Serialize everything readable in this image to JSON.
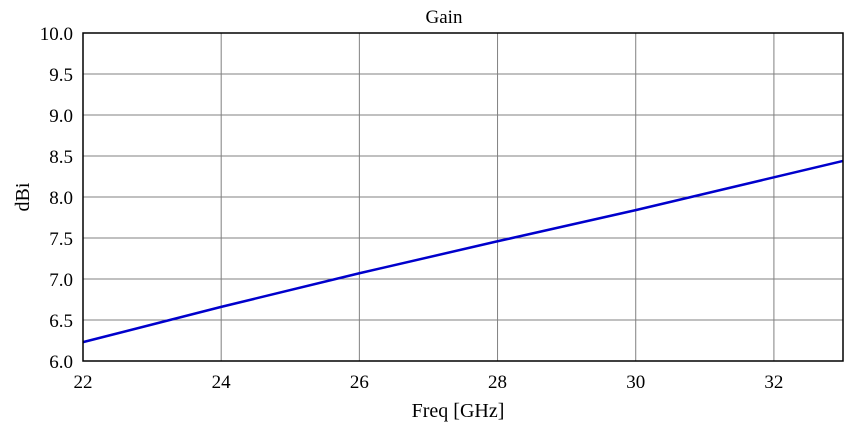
{
  "chart_data": {
    "type": "line",
    "title": "Gain",
    "xlabel": "Freq [GHz]",
    "ylabel": "dBi",
    "xlim": [
      22,
      33
    ],
    "ylim": [
      6.0,
      10.0
    ],
    "x_ticks": [
      "22",
      "24",
      "26",
      "28",
      "30",
      "32"
    ],
    "y_ticks": [
      "6.0",
      "6.5",
      "7.0",
      "7.5",
      "8.0",
      "8.5",
      "9.0",
      "9.5",
      "10.0"
    ],
    "grid": true,
    "series": [
      {
        "color": "#0000cc",
        "x": [
          22,
          24,
          26,
          28,
          30,
          32,
          33
        ],
        "y": [
          6.23,
          6.66,
          7.07,
          7.46,
          7.84,
          8.24,
          8.44
        ]
      }
    ]
  }
}
